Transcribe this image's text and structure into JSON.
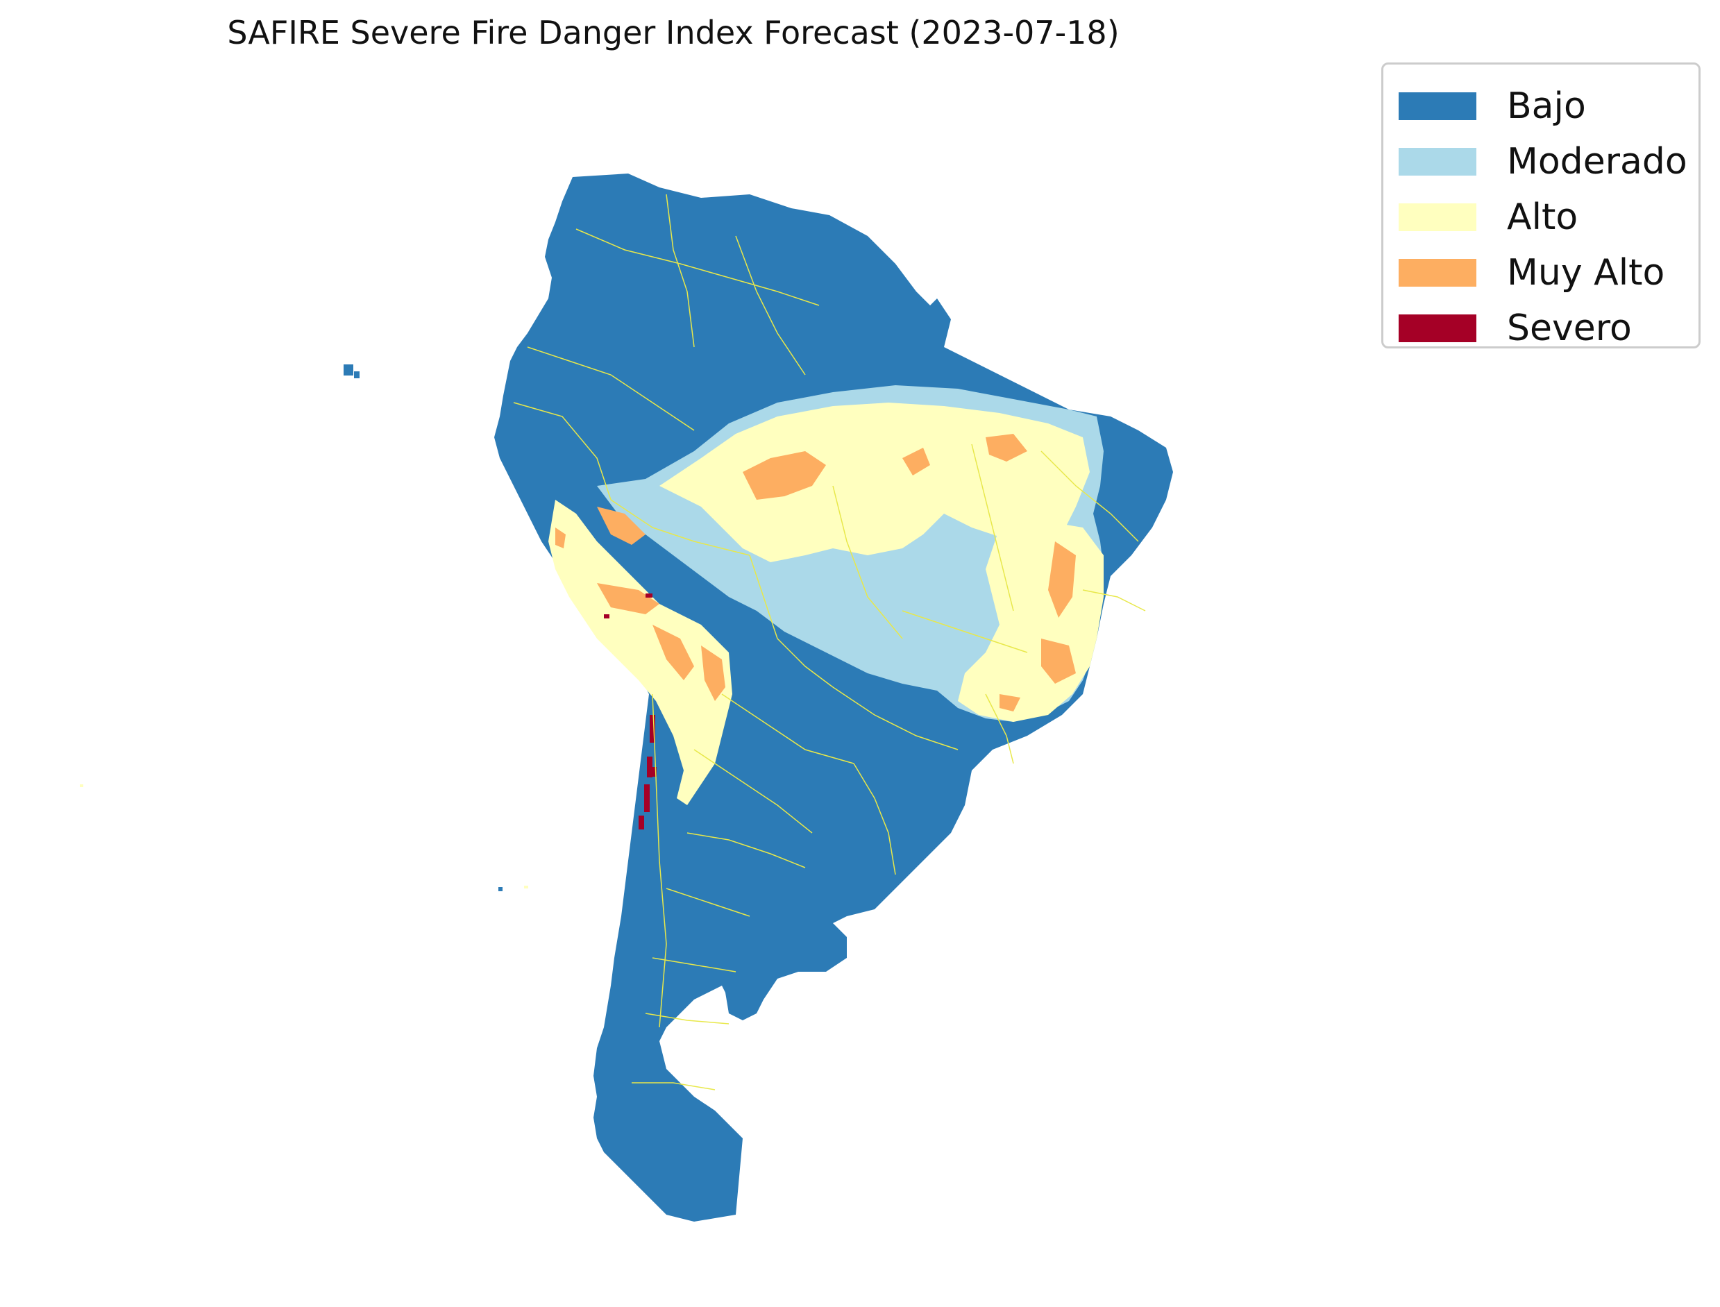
{
  "title": "SAFIRE Severe Fire Danger Index Forecast (2023-07-18)",
  "legend": {
    "items": [
      {
        "label": "Bajo",
        "color": "#2c7bb6"
      },
      {
        "label": "Moderado",
        "color": "#abd9e9"
      },
      {
        "label": "Alto",
        "color": "#ffffbf"
      },
      {
        "label": "Muy Alto",
        "color": "#fdae61"
      },
      {
        "label": "Severo",
        "color": "#a50026"
      }
    ]
  },
  "colors": {
    "border_lines": "#e8e84a",
    "background": "#ffffff"
  }
}
